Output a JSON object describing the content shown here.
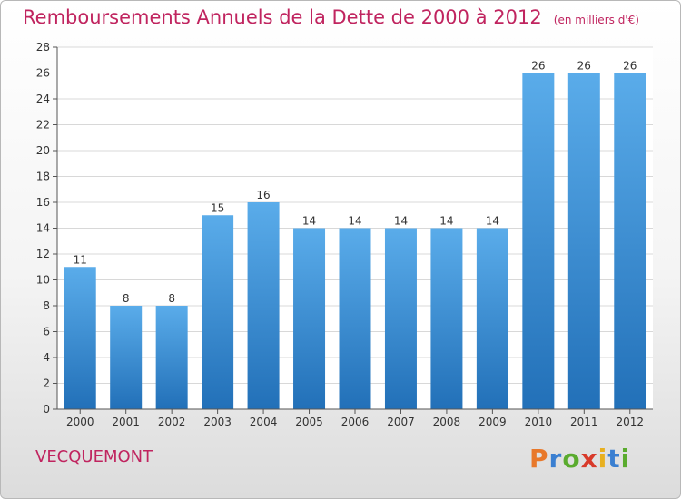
{
  "title": "Remboursements Annuels de la Dette de 2000 à 2012",
  "subtitle": "(en milliers d'€)",
  "town": "VECQUEMONT",
  "brand": "Proxiti",
  "brand_colors": [
    "#e8782a",
    "#3a7fd1",
    "#5aab2e",
    "#d83a2a",
    "#e8b020",
    "#3a7fd1",
    "#5aab2e"
  ],
  "colors": {
    "bar": "#3a8fd6",
    "bar_dark": "#2676bf",
    "title": "#c0245f",
    "grid": "#d8d8d8"
  },
  "chart_data": {
    "type": "bar",
    "categories": [
      "2000",
      "2001",
      "2002",
      "2003",
      "2004",
      "2005",
      "2006",
      "2007",
      "2008",
      "2009",
      "2010",
      "2011",
      "2012"
    ],
    "values": [
      11,
      8,
      8,
      15,
      16,
      14,
      14,
      14,
      14,
      14,
      26,
      26,
      26
    ],
    "data_labels": [
      "11",
      "8",
      "8",
      "15",
      "16",
      "14",
      "14",
      "14",
      "14",
      "14",
      "26",
      "26",
      "26"
    ],
    "title": "Remboursements Annuels de la Dette de 2000 à 2012",
    "subtitle": "(en milliers d'€)",
    "xlabel": "",
    "ylabel": "",
    "ylim": [
      0,
      28
    ],
    "yticks": [
      0,
      2,
      4,
      6,
      8,
      10,
      12,
      14,
      16,
      18,
      20,
      22,
      24,
      26,
      28
    ],
    "grid": true
  }
}
